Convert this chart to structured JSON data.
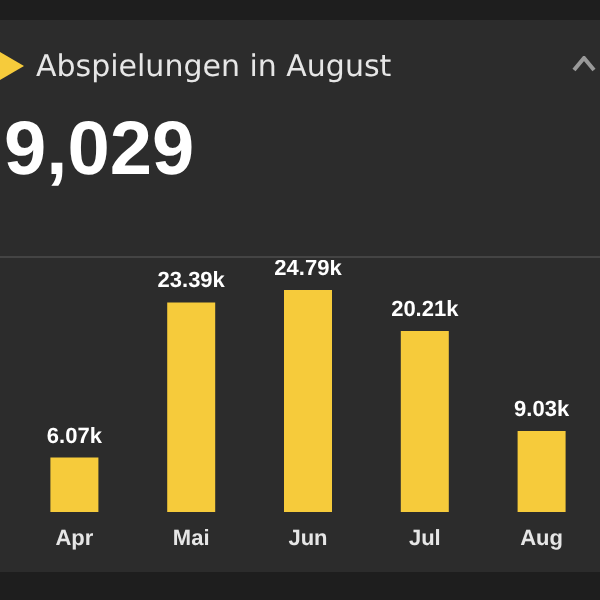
{
  "chart_data": {
    "type": "bar",
    "title": "Abspielungen in August",
    "subtitle": "9,029",
    "categories": [
      "Apr",
      "Mai",
      "Jun",
      "Jul",
      "Aug"
    ],
    "values": [
      6.07,
      23.39,
      24.79,
      20.21,
      9.03
    ],
    "value_labels": [
      "6.07k",
      "23.39k",
      "24.79k",
      "20.21k",
      "9.03k"
    ],
    "color": "#f6cb3b",
    "grid": false
  }
}
